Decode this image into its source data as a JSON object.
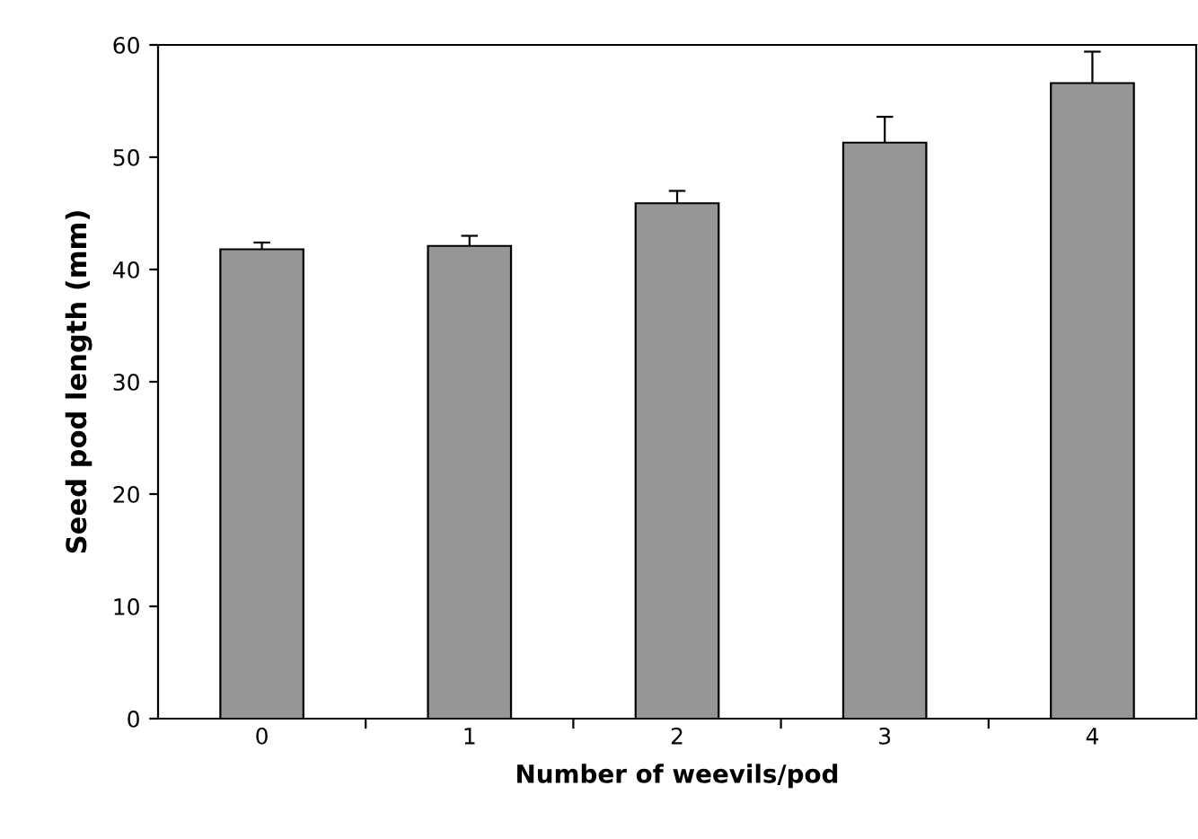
{
  "chart_data": {
    "type": "bar",
    "xlabel": "Number of weevils/pod",
    "ylabel": "Seed pod length (mm)",
    "categories": [
      "0",
      "1",
      "2",
      "3",
      "4"
    ],
    "values": [
      41.8,
      42.1,
      45.9,
      51.3,
      56.6
    ],
    "errors": [
      [
        41.8,
        42.4
      ],
      [
        42.1,
        43.0
      ],
      [
        45.9,
        47.0
      ],
      [
        51.3,
        53.6
      ],
      [
        56.6,
        59.4
      ]
    ],
    "color": "#969696",
    "ylim": [
      0,
      60
    ],
    "yticks": [
      0,
      10,
      20,
      30,
      40,
      50,
      60
    ],
    "grid": false,
    "legend": false
  }
}
